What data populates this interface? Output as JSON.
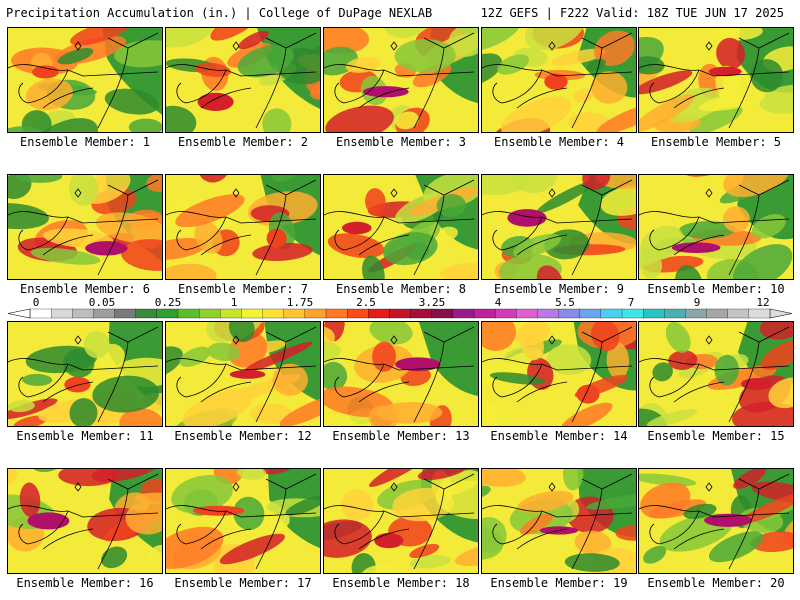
{
  "header": {
    "left": "Precipitation Accumulation (in.) | College of DuPage NEXLAB",
    "right": "12Z GEFS | F222 Valid: 18Z TUE JUN 17 2025"
  },
  "panels": [
    {
      "label": "Ensemble Member: 1"
    },
    {
      "label": "Ensemble Member: 2"
    },
    {
      "label": "Ensemble Member: 3"
    },
    {
      "label": "Ensemble Member: 4"
    },
    {
      "label": "Ensemble Member: 5"
    },
    {
      "label": "Ensemble Member: 6"
    },
    {
      "label": "Ensemble Member: 7"
    },
    {
      "label": "Ensemble Member: 8"
    },
    {
      "label": "Ensemble Member: 9"
    },
    {
      "label": "Ensemble Member: 10"
    },
    {
      "label": "Ensemble Member: 11"
    },
    {
      "label": "Ensemble Member: 12"
    },
    {
      "label": "Ensemble Member: 13"
    },
    {
      "label": "Ensemble Member: 14"
    },
    {
      "label": "Ensemble Member: 15"
    },
    {
      "label": "Ensemble Member: 16"
    },
    {
      "label": "Ensemble Member: 17"
    },
    {
      "label": "Ensemble Member: 18"
    },
    {
      "label": "Ensemble Member: 19"
    },
    {
      "label": "Ensemble Member: 20"
    }
  ],
  "colorbar": {
    "tick_labels": [
      "0",
      "0.05",
      "0.25",
      "1",
      "1.75",
      "2.5",
      "3.25",
      "4",
      "5.5",
      "7",
      "9",
      "12"
    ],
    "colors": [
      "#ffffff",
      "#d9d9d9",
      "#bdbdbd",
      "#9e9e9e",
      "#7a7a7a",
      "#3a8a3a",
      "#2ea02e",
      "#5cbf2a",
      "#8fd12a",
      "#c6e62c",
      "#f4f42e",
      "#ffe033",
      "#ffc42e",
      "#ffa22a",
      "#ff7a22",
      "#ff4a1a",
      "#e61c1c",
      "#c4142a",
      "#a4103a",
      "#8a0e4a",
      "#9a1a8a",
      "#c0209a",
      "#d23aba",
      "#e060d0",
      "#b87ae8",
      "#8a8ae8",
      "#6aa6f0",
      "#4ad0f2",
      "#3ae8e8",
      "#2ac4c4",
      "#4ab0b0",
      "#8aa6a6",
      "#a6a6a6",
      "#c4c4c4",
      "#dcdcdc"
    ]
  }
}
